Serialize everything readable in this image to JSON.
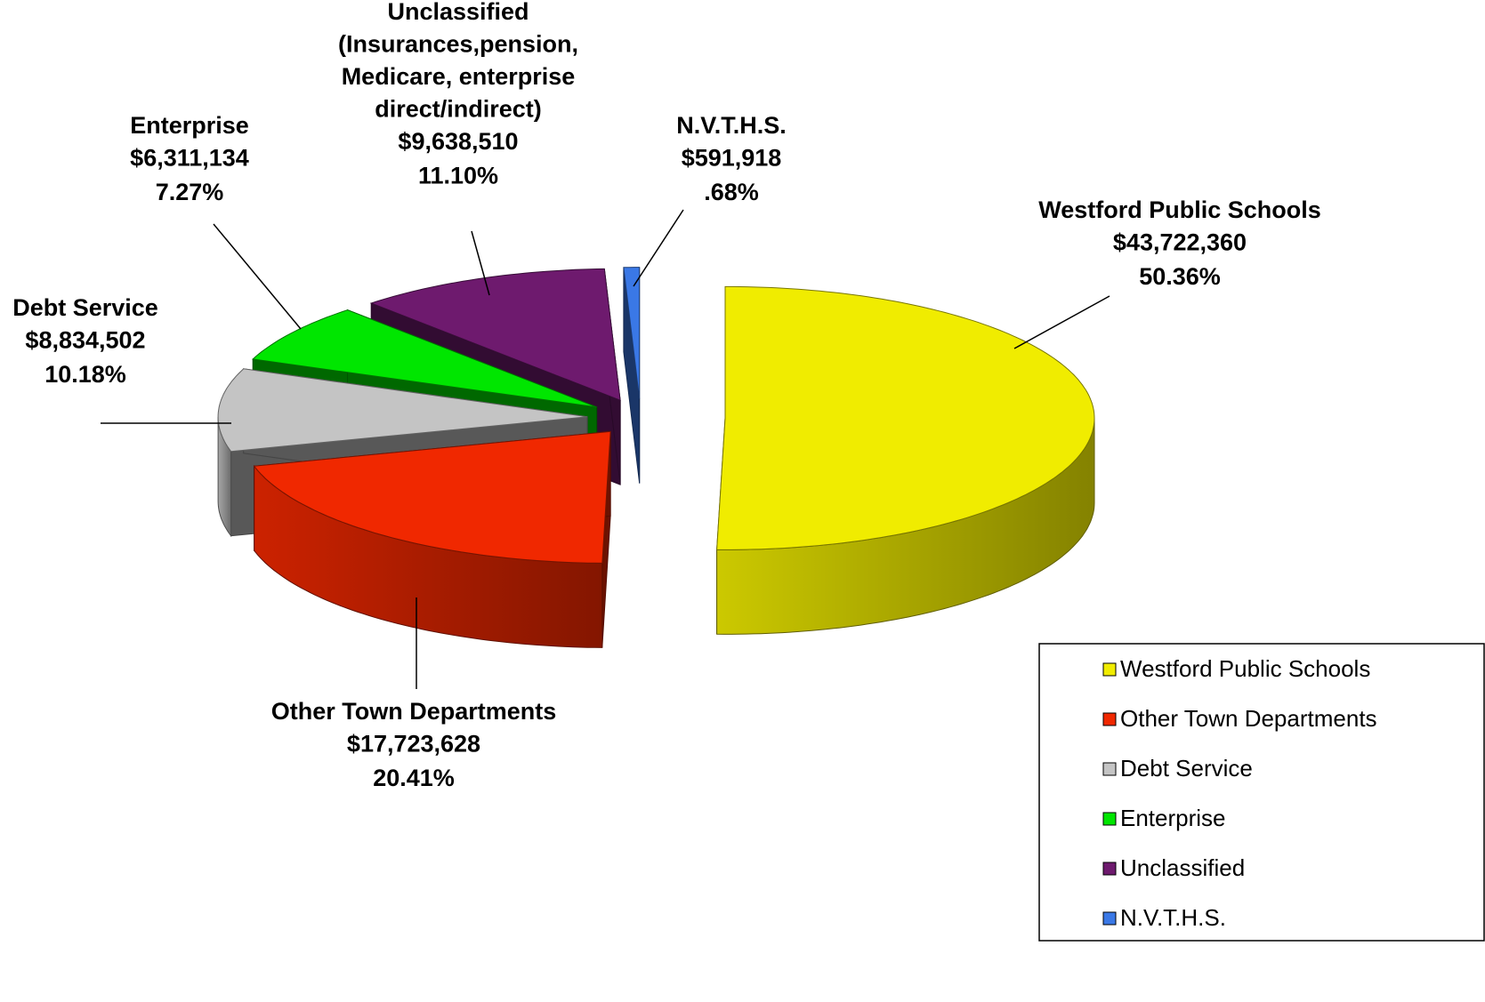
{
  "chart_data": {
    "type": "pie3d",
    "categories": [
      "Westford Public Schools",
      "Other Town Departments",
      "Debt Service",
      "Enterprise",
      "Unclassified",
      "N.V.T.H.S."
    ],
    "values": [
      43722360,
      17723628,
      8834502,
      6311134,
      9638510,
      591918
    ],
    "value_labels": [
      "$43,722,360",
      "$17,723,628",
      "$8,834,502",
      "$6,311,134",
      "$9,638,510",
      "$591,918"
    ],
    "percentages": [
      50.36,
      20.41,
      10.18,
      7.27,
      11.1,
      0.68
    ],
    "percentage_labels": [
      "50.36%",
      "20.41%",
      "10.18%",
      "7.27%",
      "11.10%",
      ".68%"
    ],
    "slice_labels": [
      [
        "Westford Public Schools"
      ],
      [
        "Other Town Departments"
      ],
      [
        "Debt Service"
      ],
      [
        "Enterprise"
      ],
      [
        "Unclassified",
        "(Insurances,pension,",
        "Medicare, enterprise",
        "direct/indirect)"
      ],
      [
        "N.V.T.H.S."
      ]
    ],
    "colors": [
      "#f0ec00",
      "#f02800",
      "#c4c4c4",
      "#00e600",
      "#6e1a6e",
      "#3a78e6"
    ],
    "legend": "right-bottom"
  }
}
